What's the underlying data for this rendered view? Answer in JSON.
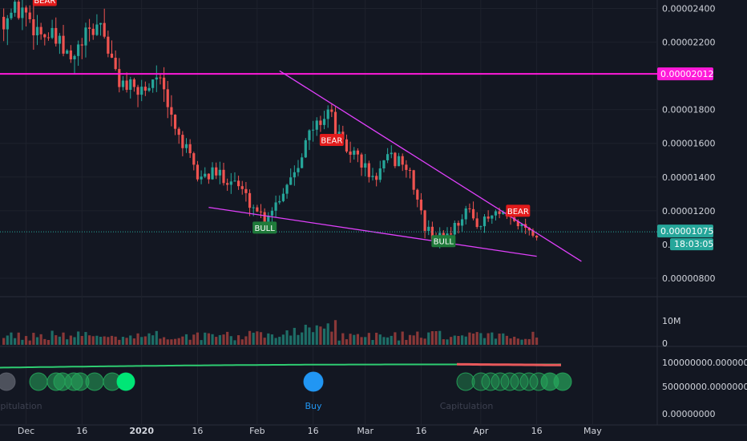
{
  "colors": {
    "background": "#131722",
    "grid": "#1e222d",
    "up": "#26a69a",
    "down": "#ef5350",
    "up_volume": "#1e6e67",
    "down_volume": "#8a3838",
    "trend": "#e040fb",
    "level": "#ff1ad9",
    "axis_text": "#d1d4dc",
    "price_label": "#26a69a",
    "bull_label": "#1f7a3a",
    "bear_label": "#e21b1b",
    "osc_green": "#26a65b",
    "osc_bright": "#00e676",
    "osc_grey": "#5d606b",
    "osc_blue": "#2196f3",
    "line_green": "#2ecc71",
    "line_red": "#e8595b"
  },
  "price_axis": {
    "ticks": [
      "0.00002400",
      "0.00002200",
      "0.00001800",
      "0.00001600",
      "0.00001400",
      "0.00001200",
      "0.00000800"
    ],
    "partial_tick": "0.",
    "level_label": "0.00002012",
    "current_price_label": "0.00001075",
    "countdown_label": "18:03:05"
  },
  "volume_axis": {
    "ticks": [
      "10M",
      "0"
    ]
  },
  "osc_axis": {
    "ticks": [
      "100000000.00000000",
      "50000000.00000000",
      "0.00000000"
    ]
  },
  "time_axis": {
    "ticks": [
      "Dec",
      "16",
      "2020",
      "16",
      "Feb",
      "16",
      "Mar",
      "16",
      "Apr",
      "16",
      "May"
    ]
  },
  "signals": {
    "bear_text": "BEAR",
    "bull_text": "BULL",
    "buy_text": "Buy",
    "capitulation_text": "Capitulation"
  },
  "chart_data": {
    "type": "candlestick",
    "price_range": [
      7e-06,
      2.45e-05
    ],
    "horizontal_level": 2.012e-05,
    "last_price": 1.075e-05,
    "date_range": [
      "2019-11-25",
      "2020-05-03"
    ],
    "upper_trendline": [
      [
        "2020-02-07",
        2.03e-05
      ],
      [
        "2020-04-28",
        9e-06
      ]
    ],
    "lower_trendline": [
      [
        "2020-01-19",
        1.22e-05
      ],
      [
        "2020-04-16",
        9.3e-06
      ]
    ],
    "signal_markers": [
      {
        "type": "BEAR",
        "date": "2019-12-06",
        "price": 2.45e-05
      },
      {
        "type": "BEAR",
        "date": "2020-02-21",
        "price": 1.62e-05
      },
      {
        "type": "BEAR",
        "date": "2020-04-11",
        "price": 1.2e-05
      },
      {
        "type": "BULL",
        "date": "2020-02-03",
        "price": 1.1e-05
      },
      {
        "type": "BULL",
        "date": "2020-03-22",
        "price": 1.02e-05
      }
    ],
    "buy_marker_date": "2020-02-18",
    "anchors": [
      [
        "2019-11-25",
        2.35e-05
      ],
      [
        "2019-11-30",
        2.4e-05
      ],
      [
        "2019-12-04",
        2.28e-05
      ],
      [
        "2019-12-09",
        2.2e-05
      ],
      [
        "2019-12-13",
        2.08e-05
      ],
      [
        "2019-12-17",
        2.22e-05
      ],
      [
        "2019-12-21",
        2.32e-05
      ],
      [
        "2019-12-25",
        2e-05
      ],
      [
        "2019-12-30",
        1.9e-05
      ],
      [
        "2020-01-03",
        1.95e-05
      ],
      [
        "2020-01-05",
        2.03e-05
      ],
      [
        "2020-01-08",
        1.8e-05
      ],
      [
        "2020-01-12",
        1.6e-05
      ],
      [
        "2020-01-16",
        1.4e-05
      ],
      [
        "2020-01-21",
        1.42e-05
      ],
      [
        "2020-01-26",
        1.38e-05
      ],
      [
        "2020-01-30",
        1.25e-05
      ],
      [
        "2020-02-03",
        1.16e-05
      ],
      [
        "2020-02-07",
        1.28e-05
      ],
      [
        "2020-02-11",
        1.45e-05
      ],
      [
        "2020-02-15",
        1.65e-05
      ],
      [
        "2020-02-20",
        1.8e-05
      ],
      [
        "2020-02-24",
        1.58e-05
      ],
      [
        "2020-02-28",
        1.52e-05
      ],
      [
        "2020-03-03",
        1.38e-05
      ],
      [
        "2020-03-07",
        1.5e-05
      ],
      [
        "2020-03-11",
        1.5e-05
      ],
      [
        "2020-03-14",
        1.35e-05
      ],
      [
        "2020-03-17",
        1.1e-05
      ],
      [
        "2020-03-20",
        1.03e-05
      ],
      [
        "2020-03-24",
        1.08e-05
      ],
      [
        "2020-03-28",
        1.2e-05
      ],
      [
        "2020-04-01",
        1.12e-05
      ],
      [
        "2020-04-05",
        1.18e-05
      ],
      [
        "2020-04-09",
        1.14e-05
      ],
      [
        "2020-04-13",
        1.1e-05
      ],
      [
        "2020-04-16",
        1.07e-05
      ]
    ],
    "volume_range": [
      0,
      14000000
    ]
  }
}
